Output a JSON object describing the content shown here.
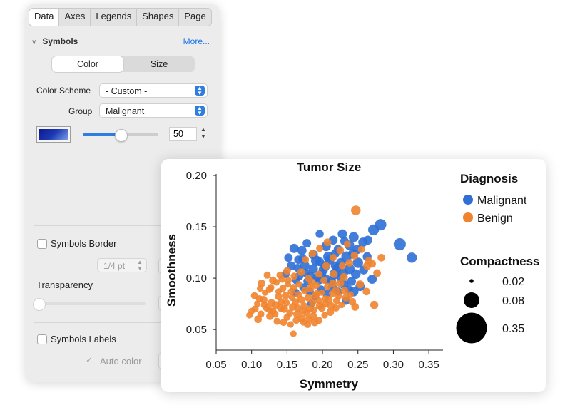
{
  "tabs": [
    "Data",
    "Axes",
    "Legends",
    "Shapes",
    "Page"
  ],
  "active_tab": "Data",
  "section": {
    "title": "Symbols",
    "more_label": "More..."
  },
  "segmented": {
    "options": [
      "Color",
      "Size"
    ],
    "selected": "Color"
  },
  "color_scheme": {
    "label": "Color Scheme",
    "value": "- Custom -"
  },
  "group": {
    "label": "Group",
    "value": "Malignant"
  },
  "color_slider": {
    "value": 50,
    "display": "50",
    "fraction": 0.5,
    "swatch_color": "#1d39b4"
  },
  "symbols_border": {
    "label": "Symbols Border",
    "checked": false,
    "width_value": "1/4 pt"
  },
  "transparency": {
    "label": "Transparency",
    "fraction": 0.0
  },
  "symbols_labels": {
    "label": "Symbols Labels",
    "checked": false,
    "auto_color_label": "Auto color",
    "auto_color_checked": true
  },
  "chart_data": {
    "type": "scatter",
    "title": "Tumor Size",
    "xlabel": "Symmetry",
    "ylabel": "Smoothness",
    "xlim": [
      0.05,
      0.37
    ],
    "ylim": [
      0.03,
      0.2
    ],
    "xticks": [
      "0.05",
      "0.10",
      "0.15",
      "0.20",
      "0.25",
      "0.30",
      "0.35"
    ],
    "yticks": [
      "0.05",
      "0.10",
      "0.15",
      "0.20"
    ],
    "grid": false,
    "legend_position": "right",
    "colors": {
      "Malignant": "#2f6fd6",
      "Benign": "#f0832d"
    },
    "legend_title": "Diagnosis",
    "size_legend": {
      "title": "Compactness",
      "values": [
        "0.02",
        "0.08",
        "0.35"
      ]
    },
    "series": [
      {
        "name": "Malignant",
        "points": [
          [
            0.309,
            0.133,
            0.19
          ],
          [
            0.326,
            0.12,
            0.12
          ],
          [
            0.282,
            0.152,
            0.16
          ],
          [
            0.272,
            0.147,
            0.14
          ],
          [
            0.244,
            0.14,
            0.11
          ],
          [
            0.238,
            0.132,
            0.1
          ],
          [
            0.257,
            0.135,
            0.09
          ],
          [
            0.263,
            0.121,
            0.08
          ],
          [
            0.25,
            0.115,
            0.12
          ],
          [
            0.247,
            0.104,
            0.1
          ],
          [
            0.241,
            0.097,
            0.08
          ],
          [
            0.234,
            0.121,
            0.13
          ],
          [
            0.226,
            0.115,
            0.1
          ],
          [
            0.221,
            0.11,
            0.09
          ],
          [
            0.217,
            0.104,
            0.12
          ],
          [
            0.213,
            0.097,
            0.08
          ],
          [
            0.208,
            0.121,
            0.11
          ],
          [
            0.204,
            0.112,
            0.1
          ],
          [
            0.199,
            0.104,
            0.08
          ],
          [
            0.195,
            0.098,
            0.07
          ],
          [
            0.191,
            0.117,
            0.12
          ],
          [
            0.187,
            0.109,
            0.09
          ],
          [
            0.183,
            0.102,
            0.08
          ],
          [
            0.179,
            0.097,
            0.07
          ],
          [
            0.175,
            0.112,
            0.1
          ],
          [
            0.171,
            0.127,
            0.09
          ],
          [
            0.167,
            0.102,
            0.07
          ],
          [
            0.163,
            0.098,
            0.06
          ],
          [
            0.16,
            0.129,
            0.09
          ],
          [
            0.156,
            0.112,
            0.08
          ],
          [
            0.173,
            0.091,
            0.06
          ],
          [
            0.182,
            0.087,
            0.06
          ],
          [
            0.19,
            0.082,
            0.05
          ],
          [
            0.198,
            0.089,
            0.06
          ],
          [
            0.206,
            0.085,
            0.07
          ],
          [
            0.214,
            0.091,
            0.08
          ],
          [
            0.222,
            0.087,
            0.06
          ],
          [
            0.23,
            0.094,
            0.09
          ],
          [
            0.237,
            0.089,
            0.07
          ],
          [
            0.244,
            0.087,
            0.1
          ],
          [
            0.253,
            0.092,
            0.09
          ],
          [
            0.205,
            0.131,
            0.1
          ],
          [
            0.215,
            0.137,
            0.08
          ],
          [
            0.178,
            0.134,
            0.07
          ],
          [
            0.196,
            0.143,
            0.06
          ],
          [
            0.228,
            0.143,
            0.09
          ],
          [
            0.152,
            0.12,
            0.07
          ],
          [
            0.148,
            0.104,
            0.06
          ],
          [
            0.229,
            0.105,
            0.11
          ],
          [
            0.187,
            0.123,
            0.09
          ],
          [
            0.218,
            0.124,
            0.07
          ],
          [
            0.243,
            0.124,
            0.1
          ],
          [
            0.196,
            0.116,
            0.08
          ],
          [
            0.166,
            0.118,
            0.07
          ],
          [
            0.258,
            0.108,
            0.08
          ],
          [
            0.27,
            0.099,
            0.09
          ],
          [
            0.233,
            0.078,
            0.06
          ],
          [
            0.184,
            0.075,
            0.05
          ],
          [
            0.162,
            0.086,
            0.06
          ],
          [
            0.264,
            0.137,
            0.08
          ],
          [
            0.238,
            0.109,
            0.12
          ],
          [
            0.21,
            0.118,
            0.1
          ],
          [
            0.201,
            0.108,
            0.09
          ],
          [
            0.193,
            0.101,
            0.08
          ],
          [
            0.177,
            0.105,
            0.07
          ],
          [
            0.165,
            0.11,
            0.06
          ],
          [
            0.222,
            0.128,
            0.08
          ],
          [
            0.249,
            0.128,
            0.09
          ],
          [
            0.231,
            0.136,
            0.07
          ],
          [
            0.172,
            0.119,
            0.08
          ],
          [
            0.205,
            0.099,
            0.09
          ],
          [
            0.218,
            0.112,
            0.08
          ],
          [
            0.226,
            0.1,
            0.07
          ]
        ]
      },
      {
        "name": "Benign",
        "points": [
          [
            0.247,
            0.166,
            0.1
          ],
          [
            0.273,
            0.074,
            0.06
          ],
          [
            0.263,
            0.112,
            0.06
          ],
          [
            0.27,
            0.114,
            0.05
          ],
          [
            0.253,
            0.094,
            0.06
          ],
          [
            0.246,
            0.072,
            0.05
          ],
          [
            0.233,
            0.081,
            0.05
          ],
          [
            0.23,
            0.101,
            0.06
          ],
          [
            0.225,
            0.095,
            0.05
          ],
          [
            0.219,
            0.088,
            0.05
          ],
          [
            0.214,
            0.085,
            0.04
          ],
          [
            0.209,
            0.079,
            0.05
          ],
          [
            0.204,
            0.075,
            0.04
          ],
          [
            0.199,
            0.071,
            0.05
          ],
          [
            0.195,
            0.078,
            0.04
          ],
          [
            0.19,
            0.083,
            0.05
          ],
          [
            0.186,
            0.076,
            0.04
          ],
          [
            0.182,
            0.07,
            0.05
          ],
          [
            0.178,
            0.066,
            0.04
          ],
          [
            0.174,
            0.073,
            0.04
          ],
          [
            0.17,
            0.079,
            0.05
          ],
          [
            0.166,
            0.084,
            0.04
          ],
          [
            0.162,
            0.077,
            0.04
          ],
          [
            0.158,
            0.072,
            0.05
          ],
          [
            0.154,
            0.066,
            0.04
          ],
          [
            0.15,
            0.062,
            0.04
          ],
          [
            0.146,
            0.07,
            0.05
          ],
          [
            0.142,
            0.077,
            0.04
          ],
          [
            0.138,
            0.082,
            0.04
          ],
          [
            0.134,
            0.074,
            0.05
          ],
          [
            0.13,
            0.068,
            0.04
          ],
          [
            0.126,
            0.063,
            0.05
          ],
          [
            0.121,
            0.071,
            0.04
          ],
          [
            0.117,
            0.079,
            0.05
          ],
          [
            0.113,
            0.065,
            0.04
          ],
          [
            0.109,
            0.06,
            0.05
          ],
          [
            0.105,
            0.07,
            0.04
          ],
          [
            0.1,
            0.068,
            0.03
          ],
          [
            0.111,
            0.08,
            0.04
          ],
          [
            0.119,
            0.086,
            0.03
          ],
          [
            0.127,
            0.091,
            0.04
          ],
          [
            0.135,
            0.096,
            0.03
          ],
          [
            0.143,
            0.099,
            0.04
          ],
          [
            0.151,
            0.094,
            0.03
          ],
          [
            0.159,
            0.091,
            0.04
          ],
          [
            0.167,
            0.094,
            0.03
          ],
          [
            0.175,
            0.088,
            0.04
          ],
          [
            0.183,
            0.09,
            0.05
          ],
          [
            0.191,
            0.093,
            0.04
          ],
          [
            0.199,
            0.086,
            0.03
          ],
          [
            0.207,
            0.092,
            0.04
          ],
          [
            0.215,
            0.095,
            0.05
          ],
          [
            0.223,
            0.083,
            0.04
          ],
          [
            0.231,
            0.088,
            0.05
          ],
          [
            0.239,
            0.084,
            0.04
          ],
          [
            0.145,
            0.057,
            0.04
          ],
          [
            0.155,
            0.055,
            0.03
          ],
          [
            0.163,
            0.059,
            0.04
          ],
          [
            0.171,
            0.061,
            0.05
          ],
          [
            0.179,
            0.055,
            0.04
          ],
          [
            0.187,
            0.063,
            0.05
          ],
          [
            0.195,
            0.059,
            0.04
          ],
          [
            0.203,
            0.064,
            0.03
          ],
          [
            0.211,
            0.067,
            0.05
          ],
          [
            0.219,
            0.071,
            0.04
          ],
          [
            0.227,
            0.074,
            0.03
          ],
          [
            0.136,
            0.058,
            0.04
          ],
          [
            0.128,
            0.076,
            0.05
          ],
          [
            0.148,
            0.083,
            0.05
          ],
          [
            0.156,
            0.087,
            0.04
          ],
          [
            0.164,
            0.065,
            0.05
          ],
          [
            0.172,
            0.068,
            0.04
          ],
          [
            0.18,
            0.081,
            0.05
          ],
          [
            0.188,
            0.069,
            0.04
          ],
          [
            0.196,
            0.073,
            0.05
          ],
          [
            0.204,
            0.08,
            0.04
          ],
          [
            0.212,
            0.073,
            0.05
          ],
          [
            0.22,
            0.078,
            0.04
          ],
          [
            0.185,
            0.096,
            0.05
          ],
          [
            0.195,
            0.104,
            0.04
          ],
          [
            0.205,
            0.112,
            0.05
          ],
          [
            0.215,
            0.12,
            0.04
          ],
          [
            0.225,
            0.127,
            0.05
          ],
          [
            0.235,
            0.133,
            0.04
          ],
          [
            0.245,
            0.122,
            0.05
          ],
          [
            0.255,
            0.128,
            0.04
          ],
          [
            0.265,
            0.117,
            0.05
          ],
          [
            0.176,
            0.118,
            0.04
          ],
          [
            0.186,
            0.124,
            0.05
          ],
          [
            0.196,
            0.129,
            0.04
          ],
          [
            0.207,
            0.135,
            0.05
          ],
          [
            0.18,
            0.1,
            0.04
          ],
          [
            0.17,
            0.106,
            0.05
          ],
          [
            0.16,
            0.102,
            0.04
          ],
          [
            0.15,
            0.107,
            0.05
          ],
          [
            0.14,
            0.103,
            0.04
          ],
          [
            0.13,
            0.098,
            0.05
          ],
          [
            0.122,
            0.103,
            0.04
          ],
          [
            0.114,
            0.095,
            0.05
          ],
          [
            0.118,
            0.074,
            0.04
          ],
          [
            0.125,
            0.069,
            0.03
          ],
          [
            0.133,
            0.065,
            0.04
          ],
          [
            0.141,
            0.071,
            0.05
          ],
          [
            0.149,
            0.076,
            0.04
          ],
          [
            0.157,
            0.081,
            0.03
          ],
          [
            0.165,
            0.071,
            0.04
          ],
          [
            0.173,
            0.057,
            0.03
          ],
          [
            0.181,
            0.06,
            0.04
          ],
          [
            0.189,
            0.057,
            0.05
          ],
          [
            0.159,
            0.046,
            0.03
          ],
          [
            0.242,
            0.077,
            0.05
          ],
          [
            0.262,
            0.087,
            0.05
          ],
          [
            0.108,
            0.075,
            0.03
          ],
          [
            0.097,
            0.064,
            0.03
          ],
          [
            0.104,
            0.083,
            0.04
          ],
          [
            0.112,
            0.09,
            0.03
          ],
          [
            0.125,
            0.089,
            0.04
          ],
          [
            0.238,
            0.115,
            0.05
          ],
          [
            0.228,
            0.112,
            0.04
          ],
          [
            0.216,
            0.104,
            0.05
          ],
          [
            0.202,
            0.098,
            0.04
          ],
          [
            0.192,
            0.085,
            0.04
          ],
          [
            0.144,
            0.09,
            0.04
          ],
          [
            0.152,
            0.098,
            0.03
          ],
          [
            0.138,
            0.087,
            0.03
          ],
          [
            0.283,
            0.12,
            0.05
          ],
          [
            0.277,
            0.105,
            0.05
          ]
        ]
      }
    ]
  }
}
